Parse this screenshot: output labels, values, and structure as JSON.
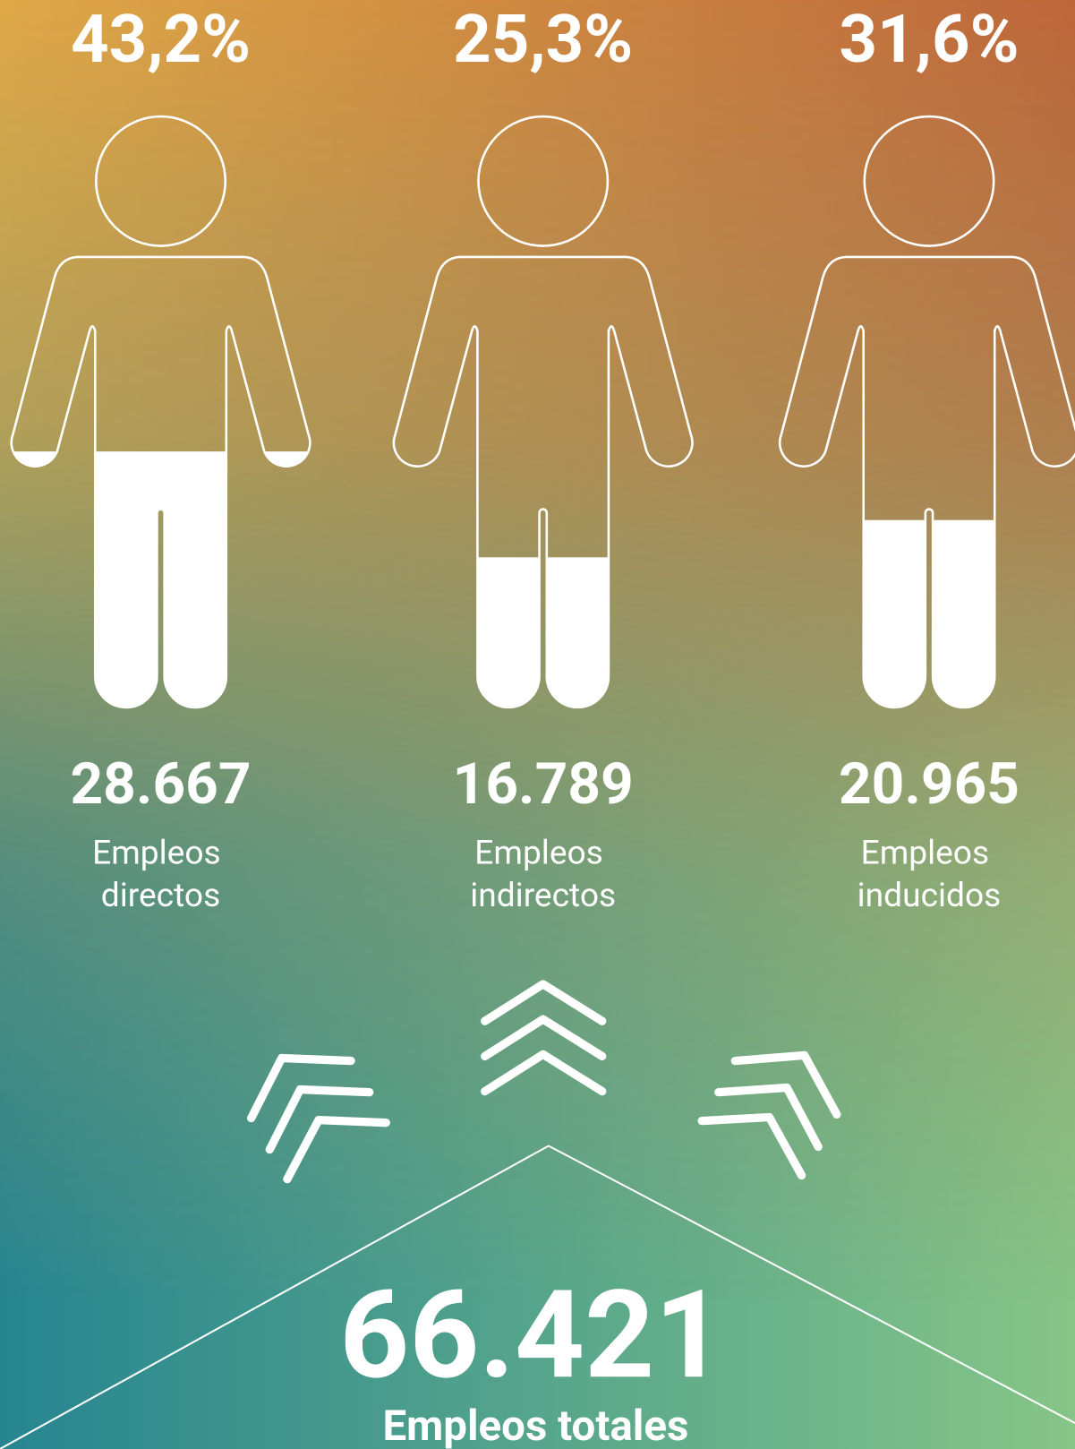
{
  "chart_data": {
    "type": "pictograph",
    "categories": [
      "Empleos directos",
      "Empleos indirectos",
      "Empleos inducidos"
    ],
    "values": [
      43.2,
      25.3,
      31.6
    ],
    "value_labels": [
      "43,2%",
      "25,3%",
      "31,6%"
    ],
    "counts": [
      28667,
      16789,
      20965
    ],
    "count_labels": [
      "28.667",
      "16.789",
      "20.965"
    ],
    "ylim": [
      0,
      100
    ],
    "color": "#ffffff",
    "total": 66421,
    "total_label": "66.421",
    "total_caption": "Empleos totales"
  }
}
